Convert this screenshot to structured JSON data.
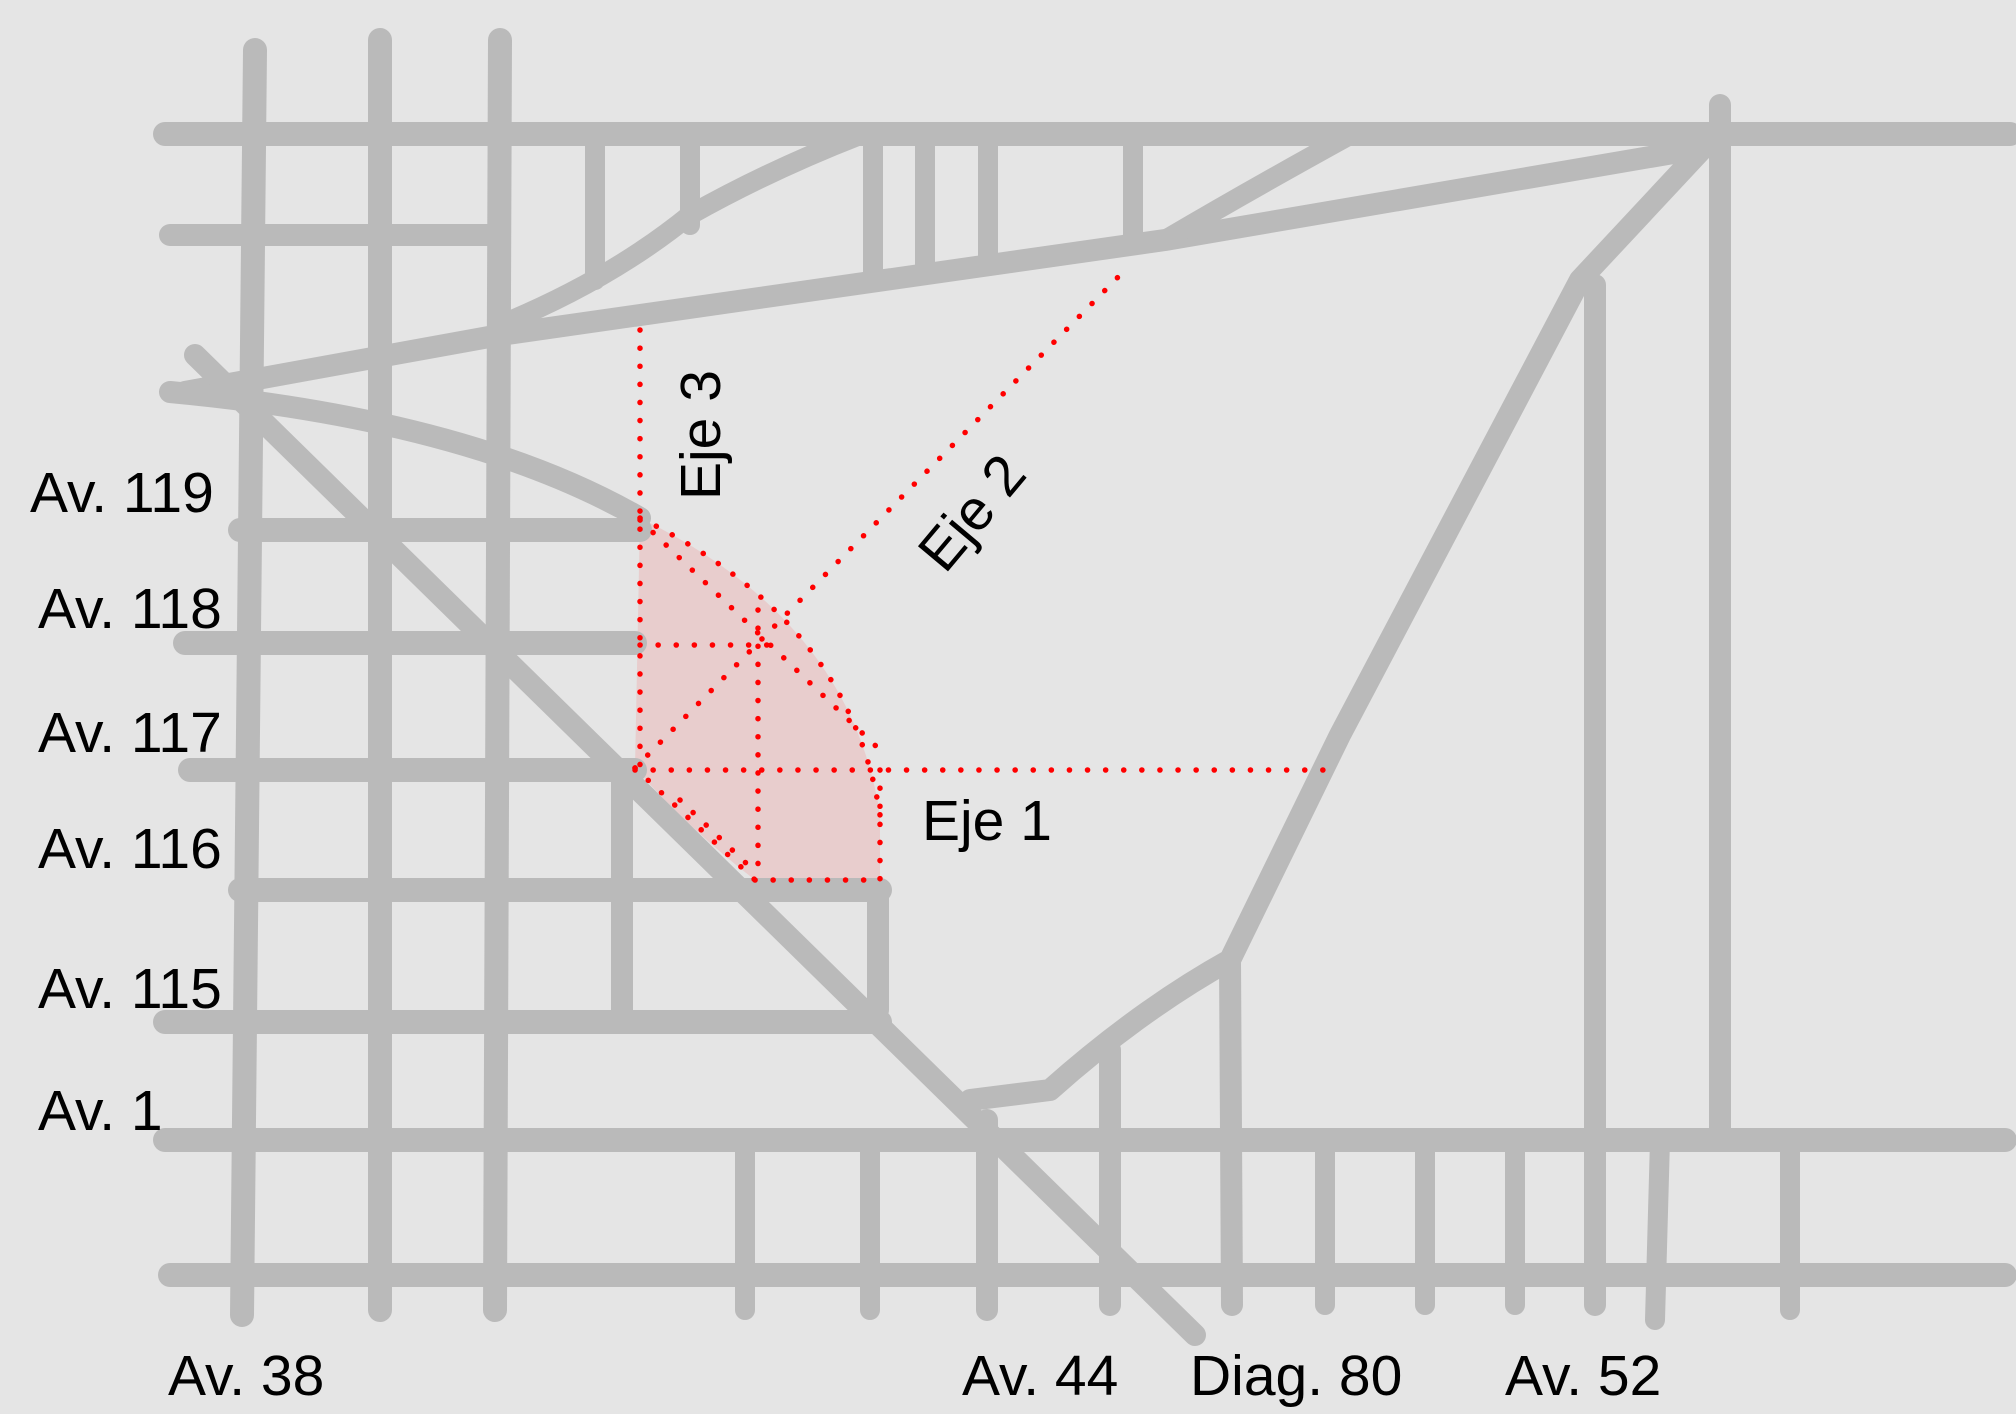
{
  "colors": {
    "background": "#e5e5e5",
    "street": "#bababa",
    "axis": "#ff0000",
    "zone_fill": "#ef9a9a",
    "text": "#000000"
  },
  "map": {
    "avenue_labels_left": [
      {
        "id": "av-119",
        "text": "Av. 119"
      },
      {
        "id": "av-118",
        "text": "Av. 118"
      },
      {
        "id": "av-117",
        "text": "Av. 117"
      },
      {
        "id": "av-116",
        "text": "Av. 116"
      },
      {
        "id": "av-115",
        "text": "Av. 115"
      },
      {
        "id": "av-1",
        "text": "Av. 1"
      }
    ],
    "avenue_labels_bottom": [
      {
        "id": "av-38",
        "text": "Av. 38"
      },
      {
        "id": "av-44",
        "text": "Av. 44"
      },
      {
        "id": "diag-80",
        "text": "Diag. 80"
      },
      {
        "id": "av-52",
        "text": "Av. 52"
      }
    ],
    "axes": [
      {
        "id": "eje-1",
        "text": "Eje 1"
      },
      {
        "id": "eje-2",
        "text": "Eje 2"
      },
      {
        "id": "eje-3",
        "text": "Eje 3"
      }
    ]
  }
}
